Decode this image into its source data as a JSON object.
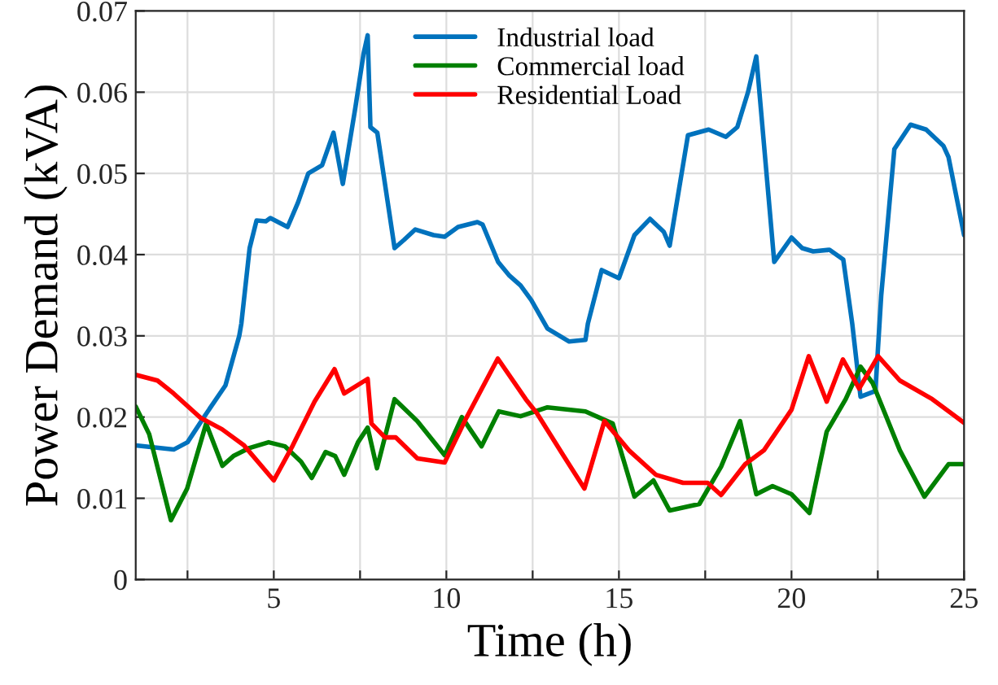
{
  "chart_data": {
    "type": "line",
    "xlabel": "Time (h)",
    "ylabel": "Power Demand (kVA)",
    "xlim": [
      1,
      25
    ],
    "ylim": [
      0,
      0.07
    ],
    "xticks": [
      {
        "value": 2.5,
        "label": null
      },
      5,
      {
        "value": 7.5,
        "label": null
      },
      10,
      {
        "value": 12.5,
        "label": null
      },
      15,
      {
        "value": 17.5,
        "label": null
      },
      20,
      {
        "value": 22.5,
        "label": null
      },
      25
    ],
    "yticks": [
      0,
      0.01,
      0.02,
      0.03,
      0.04,
      0.05,
      0.06,
      0.07
    ],
    "grid": true,
    "legend": "top",
    "line_style": "solid",
    "marker": "none",
    "series": [
      {
        "name": "Industrial load",
        "color": "#0072bd",
        "x": [
          1,
          2.1,
          2.5,
          3.04,
          3.6,
          4.0,
          4.06,
          4.3,
          4.5,
          4.77,
          4.9,
          5.4,
          5.7,
          6.0,
          6.4,
          6.73,
          7.0,
          7.36,
          7.6,
          7.72,
          7.8,
          8.0,
          8.5,
          8.77,
          9.1,
          9.63,
          9.95,
          10.34,
          10.9,
          11.05,
          11.5,
          11.83,
          12.15,
          12.46,
          12.93,
          13.56,
          14.03,
          14.1,
          14.5,
          15.0,
          15.45,
          15.9,
          16.3,
          16.47,
          17.0,
          17.6,
          18.1,
          18.43,
          18.74,
          18.98,
          19.5,
          20.0,
          20.31,
          20.63,
          21.1,
          21.5,
          21.76,
          22.0,
          22.43,
          22.6,
          22.98,
          23.45,
          23.9,
          24.4,
          24.55,
          25
        ],
        "values": [
          0.0165,
          0.016,
          0.0169,
          0.0204,
          0.0239,
          0.03,
          0.0315,
          0.0408,
          0.0442,
          0.0441,
          0.0445,
          0.0434,
          0.0464,
          0.05,
          0.051,
          0.055,
          0.0487,
          0.058,
          0.0647,
          0.067,
          0.0557,
          0.055,
          0.0408,
          0.0418,
          0.0431,
          0.0424,
          0.0422,
          0.0434,
          0.044,
          0.0437,
          0.0391,
          0.0374,
          0.0362,
          0.0344,
          0.0309,
          0.0293,
          0.0295,
          0.0315,
          0.0381,
          0.0371,
          0.0424,
          0.0444,
          0.0428,
          0.0411,
          0.0547,
          0.0554,
          0.0545,
          0.0557,
          0.06,
          0.0644,
          0.0391,
          0.0421,
          0.0408,
          0.0404,
          0.0406,
          0.0394,
          0.0315,
          0.0225,
          0.0232,
          0.035,
          0.053,
          0.056,
          0.0554,
          0.0534,
          0.052,
          0.0424
        ]
      },
      {
        "name": "Commercial load",
        "color": "#008000",
        "x": [
          1,
          1.39,
          2.02,
          2.49,
          3.04,
          3.51,
          3.83,
          4.3,
          4.85,
          5.32,
          5.79,
          6.1,
          6.5,
          6.78,
          7.04,
          7.44,
          7.72,
          7.99,
          8.5,
          9.16,
          9.95,
          10.45,
          11.02,
          11.52,
          12.15,
          12.93,
          14.03,
          14.82,
          15.45,
          16.0,
          16.47,
          17.33,
          17.96,
          18.51,
          18.98,
          19.45,
          20.0,
          20.52,
          21.02,
          21.57,
          22.0,
          22.35,
          23.14,
          23.85,
          24.55,
          25
        ],
        "values": [
          0.0213,
          0.0179,
          0.0073,
          0.0112,
          0.0192,
          0.014,
          0.0152,
          0.0162,
          0.0169,
          0.0164,
          0.0145,
          0.0125,
          0.0157,
          0.0152,
          0.0129,
          0.0169,
          0.0187,
          0.0137,
          0.0222,
          0.0195,
          0.0153,
          0.02,
          0.0164,
          0.0207,
          0.0201,
          0.0212,
          0.0207,
          0.0192,
          0.0102,
          0.0122,
          0.0085,
          0.0093,
          0.0139,
          0.0195,
          0.0105,
          0.0115,
          0.0105,
          0.0082,
          0.0182,
          0.0222,
          0.0262,
          0.0242,
          0.0159,
          0.0102,
          0.0142,
          0.0142
        ]
      },
      {
        "name": "Residential Load",
        "color": "#ff0000",
        "x": [
          1,
          1.63,
          2.1,
          2.88,
          3.5,
          4.14,
          5.0,
          5.55,
          6.18,
          6.76,
          7.04,
          7.72,
          7.83,
          8.22,
          8.53,
          9.16,
          9.95,
          10.58,
          11.49,
          12.3,
          12.62,
          13.4,
          14.0,
          14.58,
          15.29,
          16.07,
          16.86,
          17.57,
          17.96,
          18.66,
          19.2,
          20.0,
          20.5,
          21.02,
          21.49,
          21.96,
          22.51,
          23.14,
          24.08,
          25
        ],
        "values": [
          0.0252,
          0.0245,
          0.0229,
          0.0199,
          0.0185,
          0.0165,
          0.0122,
          0.0165,
          0.0219,
          0.0259,
          0.0229,
          0.0247,
          0.0192,
          0.0175,
          0.0175,
          0.0149,
          0.0144,
          0.0199,
          0.0272,
          0.0222,
          0.0205,
          0.0152,
          0.0112,
          0.0195,
          0.0159,
          0.0129,
          0.0119,
          0.0119,
          0.0104,
          0.0142,
          0.0159,
          0.0209,
          0.0275,
          0.0219,
          0.0271,
          0.0235,
          0.0275,
          0.0245,
          0.0222,
          0.0193
        ]
      }
    ]
  }
}
